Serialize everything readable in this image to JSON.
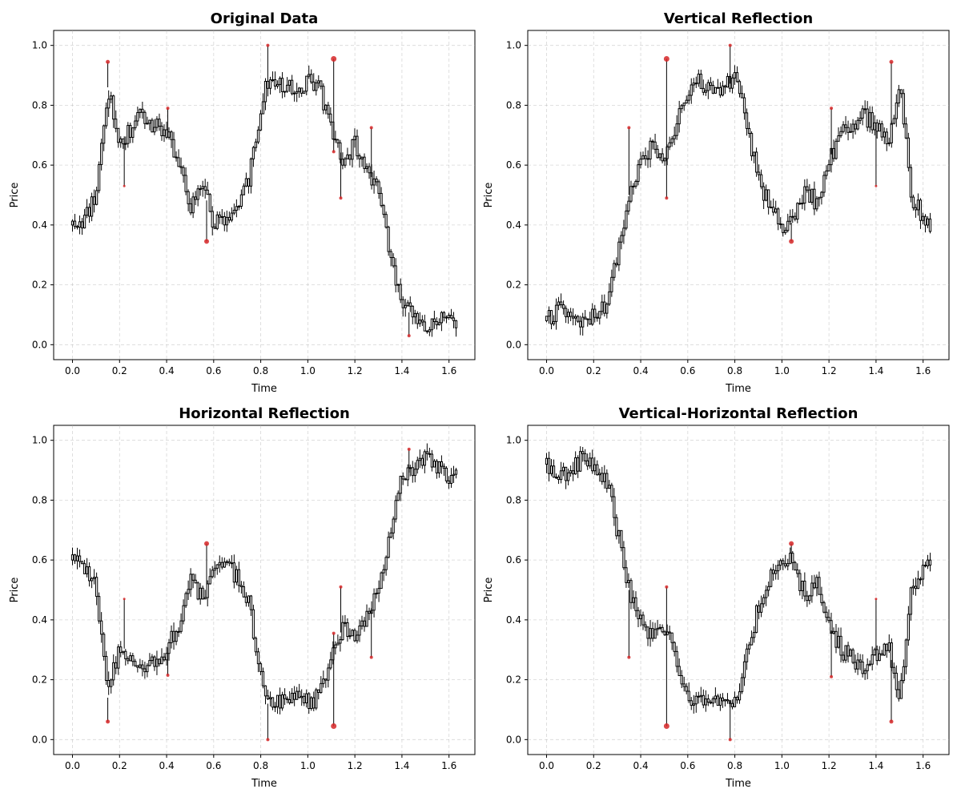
{
  "chart_data": [
    {
      "type": "candlestick",
      "title": "Original Data",
      "xlabel": "Time",
      "ylabel": "Price",
      "xlim": [
        -0.08,
        1.71
      ],
      "ylim": [
        -0.05,
        1.05
      ],
      "xticks": [
        0.0,
        0.2,
        0.4,
        0.6,
        0.8,
        1.0,
        1.2,
        1.4,
        1.6
      ],
      "xticklabels": [
        "0.0",
        "0.2",
        "0.4",
        "0.6",
        "0.8",
        "1.0",
        "1.2",
        "1.4",
        "1.6"
      ],
      "yticks": [
        0.0,
        0.2,
        0.4,
        0.6,
        0.8,
        1.0
      ],
      "yticklabels": [
        "0.0",
        "0.2",
        "0.4",
        "0.6",
        "0.8",
        "1.0"
      ],
      "grid": true,
      "series_color": "#000000",
      "marker_color": "#d62728",
      "x": [
        0.0,
        0.05,
        0.1,
        0.15,
        0.2,
        0.25,
        0.3,
        0.35,
        0.4,
        0.45,
        0.5,
        0.55,
        0.6,
        0.65,
        0.7,
        0.75,
        0.8,
        0.83,
        0.9,
        0.95,
        1.0,
        1.05,
        1.1,
        1.15,
        1.2,
        1.25,
        1.3,
        1.35,
        1.4,
        1.45,
        1.5,
        1.55,
        1.6,
        1.63
      ],
      "close": [
        0.4,
        0.42,
        0.5,
        0.86,
        0.68,
        0.72,
        0.77,
        0.73,
        0.7,
        0.62,
        0.46,
        0.53,
        0.41,
        0.4,
        0.46,
        0.55,
        0.8,
        0.88,
        0.86,
        0.85,
        0.88,
        0.85,
        0.73,
        0.62,
        0.67,
        0.6,
        0.5,
        0.3,
        0.12,
        0.1,
        0.06,
        0.08,
        0.12,
        0.08
      ],
      "markers": [
        {
          "x": 0.15,
          "y": 0.945,
          "size": 2.5
        },
        {
          "x": 0.405,
          "y": 0.79,
          "size": 2
        },
        {
          "x": 0.57,
          "y": 0.345,
          "size": 3
        },
        {
          "x": 0.83,
          "y": 1.0,
          "size": 2
        },
        {
          "x": 1.11,
          "y": 0.955,
          "size": 3.5
        },
        {
          "x": 1.11,
          "y": 0.645,
          "size": 2
        },
        {
          "x": 1.27,
          "y": 0.725,
          "size": 2
        },
        {
          "x": 1.14,
          "y": 0.49,
          "size": 2
        },
        {
          "x": 0.22,
          "y": 0.53,
          "size": 1.5
        },
        {
          "x": 1.43,
          "y": 0.03,
          "size": 2
        }
      ]
    },
    {
      "type": "candlestick",
      "title": "Vertical Reflection",
      "xlabel": "Time",
      "ylabel": "Price",
      "xlim": [
        -0.08,
        1.71
      ],
      "ylim": [
        -0.05,
        1.05
      ],
      "xticks": [
        0.0,
        0.2,
        0.4,
        0.6,
        0.8,
        1.0,
        1.2,
        1.4,
        1.6
      ],
      "xticklabels": [
        "0.0",
        "0.2",
        "0.4",
        "0.6",
        "0.8",
        "1.0",
        "1.2",
        "1.4",
        "1.6"
      ],
      "yticks": [
        0.0,
        0.2,
        0.4,
        0.6,
        0.8,
        1.0
      ],
      "yticklabels": [
        "0.0",
        "0.2",
        "0.4",
        "0.6",
        "0.8",
        "1.0"
      ],
      "grid": true,
      "series_color": "#000000",
      "marker_color": "#d62728",
      "x": [
        0.0,
        0.05,
        0.1,
        0.15,
        0.2,
        0.25,
        0.3,
        0.35,
        0.4,
        0.45,
        0.5,
        0.55,
        0.6,
        0.65,
        0.7,
        0.75,
        0.8,
        0.83,
        0.9,
        0.95,
        1.0,
        1.05,
        1.1,
        1.15,
        1.2,
        1.25,
        1.3,
        1.35,
        1.4,
        1.45,
        1.5,
        1.55,
        1.6,
        1.63
      ],
      "close": [
        0.08,
        0.12,
        0.1,
        0.06,
        0.1,
        0.12,
        0.3,
        0.5,
        0.6,
        0.67,
        0.62,
        0.73,
        0.85,
        0.88,
        0.85,
        0.86,
        0.88,
        0.8,
        0.55,
        0.46,
        0.4,
        0.41,
        0.53,
        0.46,
        0.62,
        0.7,
        0.73,
        0.77,
        0.72,
        0.68,
        0.86,
        0.5,
        0.42,
        0.4
      ],
      "markers": [
        {
          "x": 0.51,
          "y": 0.955,
          "size": 3.5
        },
        {
          "x": 0.51,
          "y": 0.49,
          "size": 2
        },
        {
          "x": 0.78,
          "y": 1.0,
          "size": 2
        },
        {
          "x": 1.04,
          "y": 0.345,
          "size": 3
        },
        {
          "x": 1.21,
          "y": 0.79,
          "size": 2
        },
        {
          "x": 1.465,
          "y": 0.945,
          "size": 2.5
        },
        {
          "x": 0.35,
          "y": 0.725,
          "size": 2
        },
        {
          "x": 1.4,
          "y": 0.53,
          "size": 1.5
        }
      ]
    },
    {
      "type": "candlestick",
      "title": "Horizontal Reflection",
      "xlabel": "Time",
      "ylabel": "Price",
      "xlim": [
        -0.08,
        1.71
      ],
      "ylim": [
        -0.05,
        1.05
      ],
      "xticks": [
        0.0,
        0.2,
        0.4,
        0.6,
        0.8,
        1.0,
        1.2,
        1.4,
        1.6
      ],
      "xticklabels": [
        "0.0",
        "0.2",
        "0.4",
        "0.6",
        "0.8",
        "1.0",
        "1.2",
        "1.4",
        "1.6"
      ],
      "yticks": [
        0.0,
        0.2,
        0.4,
        0.6,
        0.8,
        1.0
      ],
      "yticklabels": [
        "0.0",
        "0.2",
        "0.4",
        "0.6",
        "0.8",
        "1.0"
      ],
      "grid": true,
      "series_color": "#000000",
      "marker_color": "#d62728",
      "x": [
        0.0,
        0.05,
        0.1,
        0.15,
        0.2,
        0.25,
        0.3,
        0.35,
        0.4,
        0.45,
        0.5,
        0.55,
        0.6,
        0.65,
        0.7,
        0.75,
        0.8,
        0.83,
        0.9,
        0.95,
        1.0,
        1.05,
        1.1,
        1.15,
        1.2,
        1.25,
        1.3,
        1.35,
        1.4,
        1.45,
        1.5,
        1.55,
        1.6,
        1.63
      ],
      "close": [
        0.6,
        0.58,
        0.5,
        0.14,
        0.32,
        0.28,
        0.23,
        0.27,
        0.3,
        0.38,
        0.54,
        0.47,
        0.59,
        0.6,
        0.54,
        0.45,
        0.2,
        0.12,
        0.14,
        0.15,
        0.12,
        0.15,
        0.27,
        0.38,
        0.33,
        0.4,
        0.5,
        0.7,
        0.88,
        0.9,
        0.94,
        0.92,
        0.88,
        0.92
      ],
      "markers": [
        {
          "x": 0.15,
          "y": 0.06,
          "size": 2.5
        },
        {
          "x": 0.405,
          "y": 0.215,
          "size": 2
        },
        {
          "x": 0.57,
          "y": 0.655,
          "size": 3
        },
        {
          "x": 0.83,
          "y": 0.0,
          "size": 2
        },
        {
          "x": 1.11,
          "y": 0.045,
          "size": 3.5
        },
        {
          "x": 1.11,
          "y": 0.355,
          "size": 2
        },
        {
          "x": 1.27,
          "y": 0.275,
          "size": 2
        },
        {
          "x": 1.14,
          "y": 0.51,
          "size": 2
        },
        {
          "x": 0.22,
          "y": 0.47,
          "size": 1.5
        },
        {
          "x": 1.43,
          "y": 0.97,
          "size": 2
        }
      ]
    },
    {
      "type": "candlestick",
      "title": "Vertical-Horizontal Reflection",
      "xlabel": "Time",
      "ylabel": "Price",
      "xlim": [
        -0.08,
        1.71
      ],
      "ylim": [
        -0.05,
        1.05
      ],
      "xticks": [
        0.0,
        0.2,
        0.4,
        0.6,
        0.8,
        1.0,
        1.2,
        1.4,
        1.6
      ],
      "xticklabels": [
        "0.0",
        "0.2",
        "0.4",
        "0.6",
        "0.8",
        "1.0",
        "1.2",
        "1.4",
        "1.6"
      ],
      "yticks": [
        0.0,
        0.2,
        0.4,
        0.6,
        0.8,
        1.0
      ],
      "yticklabels": [
        "0.0",
        "0.2",
        "0.4",
        "0.6",
        "0.8",
        "1.0"
      ],
      "grid": true,
      "series_color": "#000000",
      "marker_color": "#d62728",
      "x": [
        0.0,
        0.05,
        0.1,
        0.15,
        0.2,
        0.25,
        0.3,
        0.35,
        0.4,
        0.45,
        0.5,
        0.55,
        0.6,
        0.65,
        0.7,
        0.75,
        0.8,
        0.83,
        0.9,
        0.95,
        1.0,
        1.05,
        1.1,
        1.15,
        1.2,
        1.25,
        1.3,
        1.35,
        1.4,
        1.45,
        1.5,
        1.55,
        1.6,
        1.63
      ],
      "close": [
        0.92,
        0.88,
        0.9,
        0.94,
        0.9,
        0.88,
        0.7,
        0.5,
        0.4,
        0.33,
        0.38,
        0.27,
        0.15,
        0.12,
        0.15,
        0.14,
        0.12,
        0.2,
        0.45,
        0.54,
        0.6,
        0.59,
        0.47,
        0.54,
        0.38,
        0.3,
        0.27,
        0.23,
        0.28,
        0.32,
        0.14,
        0.5,
        0.58,
        0.6
      ],
      "markers": [
        {
          "x": 0.51,
          "y": 0.045,
          "size": 3.5
        },
        {
          "x": 0.51,
          "y": 0.51,
          "size": 2
        },
        {
          "x": 0.78,
          "y": 0.0,
          "size": 2
        },
        {
          "x": 1.04,
          "y": 0.655,
          "size": 3
        },
        {
          "x": 1.21,
          "y": 0.21,
          "size": 2
        },
        {
          "x": 1.465,
          "y": 0.06,
          "size": 2.5
        },
        {
          "x": 0.35,
          "y": 0.275,
          "size": 2
        },
        {
          "x": 1.4,
          "y": 0.47,
          "size": 1.5
        }
      ]
    }
  ]
}
